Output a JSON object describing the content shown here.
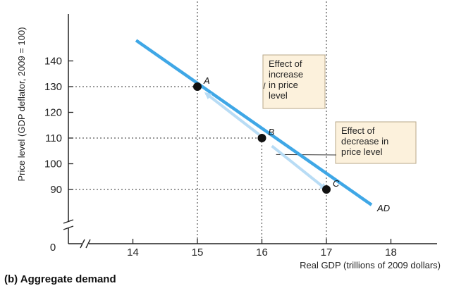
{
  "chart_data": {
    "type": "line",
    "caption": "(b) Aggregate demand",
    "xlabel": "Real GDP (trillions of 2009 dollars)",
    "ylabel": "Price level (GDP deflator, 2009 = 100)",
    "xlim": [
      13,
      18.3
    ],
    "ylim": [
      70,
      150
    ],
    "x_ticks": [
      14,
      15,
      16,
      17,
      18
    ],
    "y_ticks": [
      90,
      100,
      110,
      120,
      130,
      140
    ],
    "origin_label": "0",
    "grid": false,
    "series": [
      {
        "name": "AD",
        "x": [
          14.05,
          17.7
        ],
        "y": [
          148,
          84
        ],
        "color": "#3fa7e6"
      }
    ],
    "points": [
      {
        "label": "A",
        "x": 15,
        "y": 130
      },
      {
        "label": "B",
        "x": 16,
        "y": 110
      },
      {
        "label": "C",
        "x": 17,
        "y": 90
      }
    ],
    "annotations": [
      {
        "lines": [
          "Effect of",
          "increase",
          "in price",
          "level"
        ],
        "arrow_from": {
          "x": 15.9,
          "y": 112.5
        },
        "arrow_to": {
          "x": 15.08,
          "y": 128.4
        }
      },
      {
        "lines": [
          "Effect of",
          "decrease in",
          "price level"
        ],
        "arrow_from": {
          "x": 16.1,
          "y": 108
        },
        "arrow_to": {
          "x": 16.93,
          "y": 91.4
        }
      }
    ],
    "colors": {
      "curve": "#3fa7e6",
      "arrow": "#b8dcf5",
      "box_fill": "#fcf1dc",
      "box_stroke": "#b9a88a"
    }
  }
}
